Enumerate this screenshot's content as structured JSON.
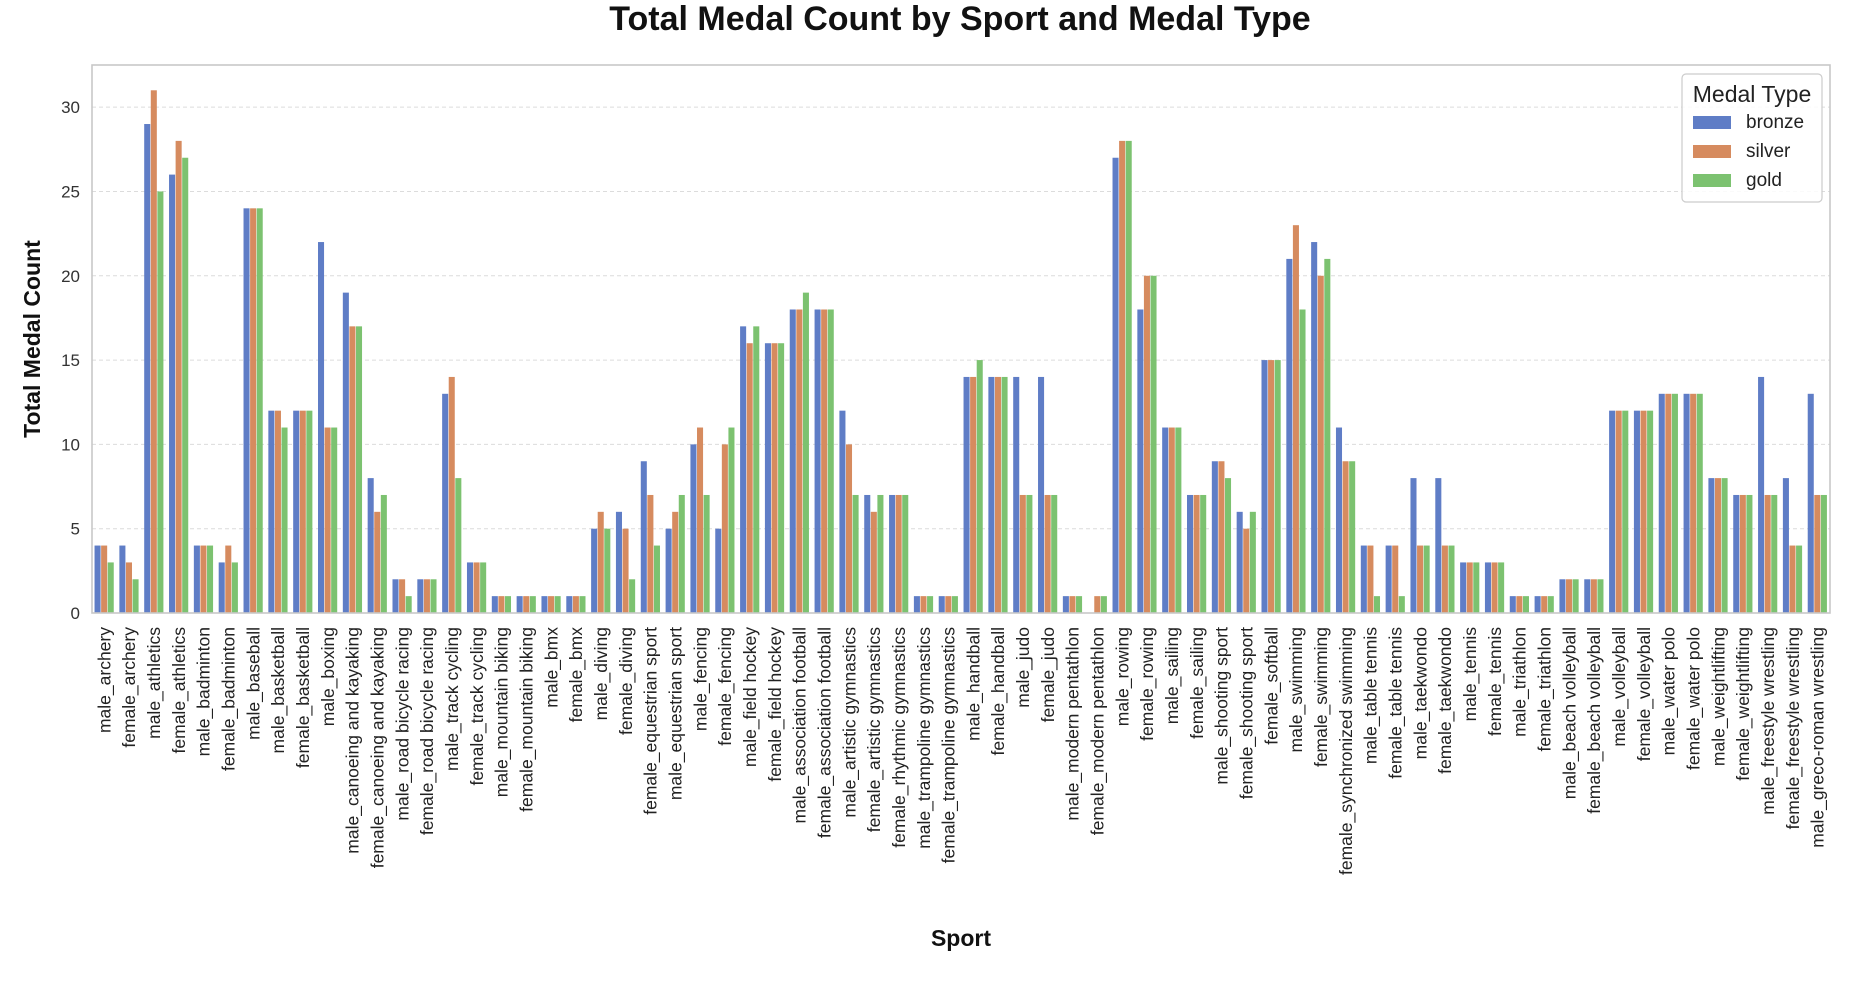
{
  "chart_data": {
    "type": "bar",
    "title": "Total Medal Count by Sport and Medal Type",
    "xlabel": "Sport",
    "ylabel": "Total Medal Count",
    "ylim": [
      0,
      32.5
    ],
    "yticks": [
      0,
      5,
      10,
      15,
      20,
      25,
      30
    ],
    "grid": true,
    "legend": {
      "title": "Medal Type",
      "placement": "top-right"
    },
    "categories": [
      "male_archery",
      "female_archery",
      "male_athletics",
      "female_athletics",
      "male_badminton",
      "female_badminton",
      "male_baseball",
      "male_basketball",
      "female_basketball",
      "male_boxing",
      "male_canoeing and kayaking",
      "female_canoeing and kayaking",
      "male_road bicycle racing",
      "female_road bicycle racing",
      "male_track cycling",
      "female_track cycling",
      "male_mountain biking",
      "female_mountain biking",
      "male_bmx",
      "female_bmx",
      "male_diving",
      "female_diving",
      "female_equestrian sport",
      "male_equestrian sport",
      "male_fencing",
      "female_fencing",
      "male_field hockey",
      "female_field hockey",
      "male_association football",
      "female_association football",
      "male_artistic gymnastics",
      "female_artistic gymnastics",
      "female_rhythmic gymnastics",
      "male_trampoline gymnastics",
      "female_trampoline gymnastics",
      "male_handball",
      "female_handball",
      "male_judo",
      "female_judo",
      "male_modern pentathlon",
      "female_modern pentathlon",
      "male_rowing",
      "female_rowing",
      "male_sailing",
      "female_sailing",
      "male_shooting sport",
      "female_shooting sport",
      "female_softball",
      "male_swimming",
      "female_swimming",
      "female_synchronized swimming",
      "male_table tennis",
      "female_table tennis",
      "male_taekwondo",
      "female_taekwondo",
      "male_tennis",
      "female_tennis",
      "male_triathlon",
      "female_triathlon",
      "male_beach volleyball",
      "female_beach volleyball",
      "male_volleyball",
      "female_volleyball",
      "male_water polo",
      "female_water polo",
      "male_weightlifting",
      "female_weightlifting",
      "male_freestyle wrestling",
      "female_freestyle wrestling",
      "male_greco-roman wrestling"
    ],
    "series": [
      {
        "name": "bronze",
        "color": "#5f7dc6",
        "values": [
          4,
          4,
          29,
          26,
          4,
          3,
          24,
          12,
          12,
          22,
          19,
          8,
          2,
          2,
          13,
          3,
          1,
          1,
          1,
          1,
          5,
          6,
          9,
          5,
          10,
          5,
          17,
          16,
          18,
          18,
          12,
          7,
          7,
          1,
          1,
          14,
          14,
          14,
          14,
          1,
          0,
          27,
          18,
          11,
          7,
          9,
          6,
          15,
          21,
          22,
          11,
          4,
          4,
          8,
          8,
          3,
          3,
          1,
          1,
          2,
          2,
          12,
          12,
          13,
          13,
          8,
          7,
          14,
          8,
          13
        ]
      },
      {
        "name": "silver",
        "color": "#d68b5f",
        "values": [
          4,
          3,
          31,
          28,
          4,
          4,
          24,
          12,
          12,
          11,
          17,
          6,
          2,
          2,
          14,
          3,
          1,
          1,
          1,
          1,
          6,
          5,
          7,
          6,
          11,
          10,
          16,
          16,
          18,
          18,
          10,
          6,
          7,
          1,
          1,
          14,
          14,
          7,
          7,
          1,
          1,
          28,
          20,
          11,
          7,
          9,
          5,
          15,
          23,
          20,
          9,
          4,
          4,
          4,
          4,
          3,
          3,
          1,
          1,
          2,
          2,
          12,
          12,
          13,
          13,
          8,
          7,
          7,
          4,
          7
        ]
      },
      {
        "name": "gold",
        "color": "#7cc270",
        "values": [
          3,
          2,
          25,
          27,
          4,
          3,
          24,
          11,
          12,
          11,
          17,
          7,
          1,
          2,
          8,
          3,
          1,
          1,
          1,
          1,
          5,
          2,
          4,
          7,
          7,
          11,
          17,
          16,
          19,
          18,
          7,
          7,
          7,
          1,
          1,
          15,
          14,
          7,
          7,
          1,
          1,
          28,
          20,
          11,
          7,
          8,
          6,
          15,
          18,
          21,
          9,
          1,
          1,
          4,
          4,
          3,
          3,
          1,
          1,
          2,
          2,
          12,
          12,
          13,
          13,
          8,
          7,
          7,
          4,
          7
        ]
      }
    ]
  }
}
